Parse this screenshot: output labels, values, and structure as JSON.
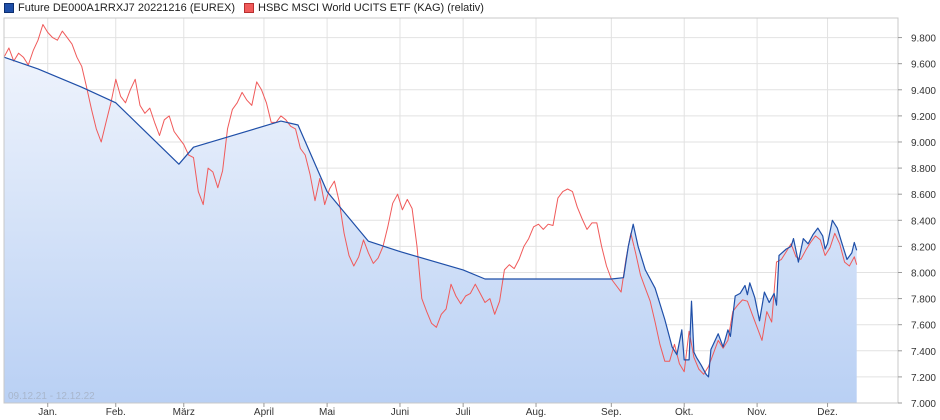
{
  "legend": {
    "series1_label": "Future DE000A1RRXJ7 20221216 (EUREX)",
    "series2_label": "HSBC MSCI World UCITS ETF (KAG) (relativ)"
  },
  "date_range": "09.12.21 - 12.12.22",
  "colors": {
    "series1": "#1f4fa8",
    "series2": "#f05a5a",
    "area_top": "#e9f0fb",
    "area_bottom": "#b9d0f4",
    "grid": "#e2e2e2"
  },
  "chart_data": {
    "type": "line",
    "xlim": [
      0,
      368
    ],
    "ylim": [
      7000,
      9950
    ],
    "y_ticks": [
      9800,
      9600,
      9400,
      9200,
      9000,
      8800,
      8600,
      8400,
      8200,
      8000,
      7800,
      7600,
      7400,
      7200,
      7000
    ],
    "y_tick_labels": [
      "9.800",
      "9.600",
      "9.400",
      "9.200",
      "9.000",
      "8.800",
      "8.600",
      "8.400",
      "8.200",
      "8.000",
      "7.800",
      "7.600",
      "7.400",
      "7.200",
      "7.000"
    ],
    "x_ticks": [
      {
        "x": 18,
        "label": "Jan."
      },
      {
        "x": 46,
        "label": "Feb."
      },
      {
        "x": 74,
        "label": "März"
      },
      {
        "x": 107,
        "label": "April"
      },
      {
        "x": 133,
        "label": "Mai"
      },
      {
        "x": 163,
        "label": "Juni"
      },
      {
        "x": 189,
        "label": "Juli"
      },
      {
        "x": 219,
        "label": "Aug."
      },
      {
        "x": 250,
        "label": "Sep."
      },
      {
        "x": 280,
        "label": "Okt."
      },
      {
        "x": 310,
        "label": "Nov."
      },
      {
        "x": 339,
        "label": "Dez."
      }
    ],
    "grid": true,
    "series": [
      {
        "name": "Future DE000A1RRXJ7 20221216 (EUREX)",
        "points": [
          [
            0,
            9650
          ],
          [
            14,
            9560
          ],
          [
            32,
            9420
          ],
          [
            46,
            9300
          ],
          [
            72,
            8830
          ],
          [
            78,
            8960
          ],
          [
            114,
            9160
          ],
          [
            121,
            9130
          ],
          [
            133,
            8620
          ],
          [
            150,
            8240
          ],
          [
            163,
            8160
          ],
          [
            189,
            8020
          ],
          [
            198,
            7950
          ],
          [
            219,
            7950
          ],
          [
            250,
            7950
          ],
          [
            255,
            7960
          ],
          [
            257,
            8200
          ],
          [
            259,
            8370
          ],
          [
            261,
            8200
          ],
          [
            264,
            8020
          ],
          [
            268,
            7880
          ],
          [
            272,
            7640
          ],
          [
            275,
            7430
          ],
          [
            277,
            7370
          ],
          [
            279,
            7560
          ],
          [
            280,
            7330
          ],
          [
            282,
            7330
          ],
          [
            283,
            7780
          ],
          [
            284,
            7390
          ],
          [
            285,
            7350
          ],
          [
            287,
            7290
          ],
          [
            289,
            7220
          ],
          [
            290,
            7200
          ],
          [
            291,
            7410
          ],
          [
            294,
            7530
          ],
          [
            296,
            7430
          ],
          [
            298,
            7560
          ],
          [
            299,
            7510
          ],
          [
            301,
            7820
          ],
          [
            303,
            7840
          ],
          [
            305,
            7900
          ],
          [
            306,
            7830
          ],
          [
            307,
            7920
          ],
          [
            309,
            7810
          ],
          [
            311,
            7630
          ],
          [
            313,
            7850
          ],
          [
            315,
            7770
          ],
          [
            317,
            7840
          ],
          [
            318,
            7750
          ],
          [
            319,
            8130
          ],
          [
            322,
            8180
          ],
          [
            324,
            8200
          ],
          [
            325,
            8260
          ],
          [
            327,
            8080
          ],
          [
            329,
            8260
          ],
          [
            331,
            8220
          ],
          [
            333,
            8290
          ],
          [
            335,
            8340
          ],
          [
            337,
            8280
          ],
          [
            338,
            8180
          ],
          [
            339,
            8220
          ],
          [
            341,
            8400
          ],
          [
            343,
            8340
          ],
          [
            345,
            8220
          ],
          [
            347,
            8100
          ],
          [
            349,
            8150
          ],
          [
            350,
            8230
          ],
          [
            351,
            8170
          ]
        ]
      },
      {
        "name": "HSBC MSCI World UCITS ETF (KAG) (relativ)",
        "points": [
          [
            0,
            9650
          ],
          [
            2,
            9720
          ],
          [
            4,
            9620
          ],
          [
            6,
            9680
          ],
          [
            8,
            9650
          ],
          [
            10,
            9590
          ],
          [
            12,
            9700
          ],
          [
            14,
            9780
          ],
          [
            16,
            9900
          ],
          [
            18,
            9840
          ],
          [
            20,
            9800
          ],
          [
            22,
            9780
          ],
          [
            24,
            9850
          ],
          [
            26,
            9800
          ],
          [
            28,
            9750
          ],
          [
            30,
            9650
          ],
          [
            32,
            9580
          ],
          [
            34,
            9420
          ],
          [
            36,
            9250
          ],
          [
            38,
            9100
          ],
          [
            40,
            9000
          ],
          [
            42,
            9150
          ],
          [
            44,
            9300
          ],
          [
            46,
            9480
          ],
          [
            48,
            9350
          ],
          [
            50,
            9300
          ],
          [
            52,
            9400
          ],
          [
            54,
            9480
          ],
          [
            56,
            9280
          ],
          [
            58,
            9220
          ],
          [
            60,
            9260
          ],
          [
            62,
            9150
          ],
          [
            64,
            9050
          ],
          [
            66,
            9170
          ],
          [
            68,
            9200
          ],
          [
            70,
            9080
          ],
          [
            72,
            9030
          ],
          [
            74,
            8980
          ],
          [
            76,
            8900
          ],
          [
            78,
            8880
          ],
          [
            80,
            8620
          ],
          [
            82,
            8520
          ],
          [
            84,
            8800
          ],
          [
            86,
            8770
          ],
          [
            88,
            8650
          ],
          [
            90,
            8780
          ],
          [
            92,
            9100
          ],
          [
            94,
            9250
          ],
          [
            96,
            9300
          ],
          [
            98,
            9380
          ],
          [
            100,
            9320
          ],
          [
            102,
            9280
          ],
          [
            104,
            9460
          ],
          [
            106,
            9400
          ],
          [
            108,
            9300
          ],
          [
            110,
            9150
          ],
          [
            112,
            9150
          ],
          [
            114,
            9200
          ],
          [
            116,
            9170
          ],
          [
            118,
            9120
          ],
          [
            120,
            9100
          ],
          [
            122,
            8950
          ],
          [
            124,
            8900
          ],
          [
            126,
            8750
          ],
          [
            128,
            8550
          ],
          [
            130,
            8720
          ],
          [
            132,
            8520
          ],
          [
            134,
            8640
          ],
          [
            136,
            8700
          ],
          [
            138,
            8540
          ],
          [
            140,
            8300
          ],
          [
            142,
            8130
          ],
          [
            144,
            8050
          ],
          [
            146,
            8120
          ],
          [
            148,
            8250
          ],
          [
            150,
            8150
          ],
          [
            152,
            8070
          ],
          [
            154,
            8110
          ],
          [
            156,
            8200
          ],
          [
            158,
            8350
          ],
          [
            160,
            8530
          ],
          [
            162,
            8600
          ],
          [
            164,
            8480
          ],
          [
            166,
            8560
          ],
          [
            168,
            8490
          ],
          [
            170,
            8200
          ],
          [
            172,
            7800
          ],
          [
            174,
            7700
          ],
          [
            176,
            7610
          ],
          [
            178,
            7580
          ],
          [
            180,
            7680
          ],
          [
            182,
            7720
          ],
          [
            184,
            7910
          ],
          [
            186,
            7820
          ],
          [
            188,
            7760
          ],
          [
            190,
            7820
          ],
          [
            192,
            7840
          ],
          [
            194,
            7910
          ],
          [
            196,
            7840
          ],
          [
            198,
            7770
          ],
          [
            200,
            7800
          ],
          [
            202,
            7680
          ],
          [
            204,
            7780
          ],
          [
            206,
            8020
          ],
          [
            208,
            8060
          ],
          [
            210,
            8030
          ],
          [
            212,
            8100
          ],
          [
            214,
            8200
          ],
          [
            216,
            8260
          ],
          [
            218,
            8350
          ],
          [
            220,
            8370
          ],
          [
            222,
            8330
          ],
          [
            224,
            8370
          ],
          [
            226,
            8360
          ],
          [
            228,
            8570
          ],
          [
            230,
            8620
          ],
          [
            232,
            8640
          ],
          [
            234,
            8620
          ],
          [
            236,
            8500
          ],
          [
            238,
            8410
          ],
          [
            240,
            8330
          ],
          [
            242,
            8380
          ],
          [
            244,
            8380
          ],
          [
            246,
            8200
          ],
          [
            248,
            8050
          ],
          [
            250,
            7950
          ],
          [
            252,
            7900
          ],
          [
            254,
            7850
          ],
          [
            256,
            8100
          ],
          [
            258,
            8300
          ],
          [
            260,
            8150
          ],
          [
            262,
            7980
          ],
          [
            264,
            7880
          ],
          [
            266,
            7780
          ],
          [
            268,
            7620
          ],
          [
            270,
            7450
          ],
          [
            272,
            7320
          ],
          [
            274,
            7320
          ],
          [
            276,
            7450
          ],
          [
            278,
            7300
          ],
          [
            280,
            7240
          ],
          [
            282,
            7550
          ],
          [
            284,
            7350
          ],
          [
            286,
            7260
          ],
          [
            288,
            7220
          ],
          [
            290,
            7280
          ],
          [
            292,
            7380
          ],
          [
            294,
            7480
          ],
          [
            296,
            7420
          ],
          [
            298,
            7480
          ],
          [
            300,
            7700
          ],
          [
            302,
            7750
          ],
          [
            304,
            7790
          ],
          [
            306,
            7780
          ],
          [
            308,
            7680
          ],
          [
            310,
            7580
          ],
          [
            312,
            7480
          ],
          [
            314,
            7700
          ],
          [
            316,
            7620
          ],
          [
            318,
            8080
          ],
          [
            320,
            8100
          ],
          [
            322,
            8160
          ],
          [
            324,
            8220
          ],
          [
            326,
            8120
          ],
          [
            328,
            8100
          ],
          [
            330,
            8170
          ],
          [
            332,
            8230
          ],
          [
            334,
            8280
          ],
          [
            336,
            8250
          ],
          [
            338,
            8130
          ],
          [
            340,
            8190
          ],
          [
            342,
            8300
          ],
          [
            344,
            8220
          ],
          [
            346,
            8080
          ],
          [
            348,
            8050
          ],
          [
            350,
            8120
          ],
          [
            351,
            8060
          ]
        ]
      }
    ]
  }
}
